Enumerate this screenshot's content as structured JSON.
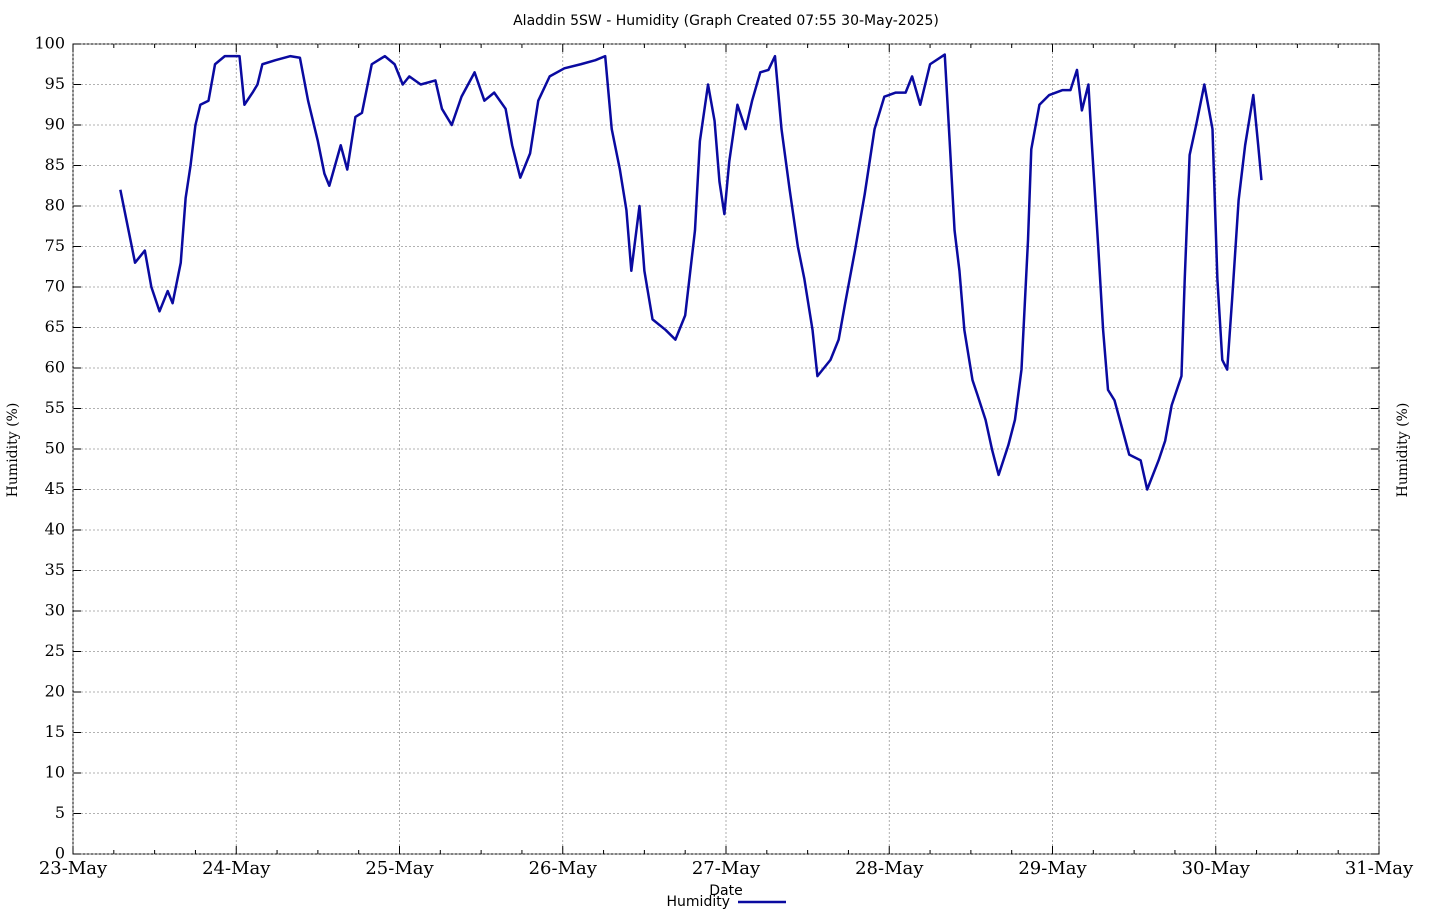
{
  "chart_data": {
    "type": "line",
    "title": "Aladdin 5SW - Humidity (Graph Created 07:55 30-May-2025)",
    "x_label": "Date",
    "y_label": "Humidity (%)",
    "y2_label": "Humidity (%)",
    "xlim": [
      0,
      8
    ],
    "xticks": [
      {
        "value": 0,
        "label": "23-May"
      },
      {
        "value": 1,
        "label": "24-May"
      },
      {
        "value": 2,
        "label": "25-May"
      },
      {
        "value": 3,
        "label": "26-May"
      },
      {
        "value": 4,
        "label": "27-May"
      },
      {
        "value": 5,
        "label": "28-May"
      },
      {
        "value": 6,
        "label": "29-May"
      },
      {
        "value": 7,
        "label": "30-May"
      },
      {
        "value": 8,
        "label": "31-May"
      }
    ],
    "ylim": [
      0,
      100
    ],
    "yticks": [
      0,
      5,
      10,
      15,
      20,
      25,
      30,
      35,
      40,
      45,
      50,
      55,
      60,
      65,
      70,
      75,
      80,
      85,
      90,
      95,
      100
    ],
    "grid": true,
    "legend": "bottom",
    "x": [
      0.29,
      0.32,
      0.35,
      0.38,
      0.44,
      0.48,
      0.53,
      0.58,
      0.61,
      0.66,
      0.69,
      0.72,
      0.75,
      0.78,
      0.83,
      0.87,
      0.93,
      1.02,
      1.05,
      1.1,
      1.13,
      1.16,
      1.24,
      1.33,
      1.39,
      1.44,
      1.5,
      1.54,
      1.57,
      1.64,
      1.68,
      1.73,
      1.77,
      1.83,
      1.91,
      1.97,
      2.02,
      2.06,
      2.13,
      2.22,
      2.26,
      2.32,
      2.38,
      2.46,
      2.52,
      2.58,
      2.65,
      2.69,
      2.74,
      2.8,
      2.85,
      2.92,
      3.01,
      3.11,
      3.2,
      3.26,
      3.3,
      3.35,
      3.39,
      3.42,
      3.47,
      3.5,
      3.55,
      3.63,
      3.69,
      3.75,
      3.81,
      3.84,
      3.89,
      3.93,
      3.96,
      3.99,
      4.02,
      4.07,
      4.12,
      4.16,
      4.21,
      4.26,
      4.3,
      4.34,
      4.39,
      4.44,
      4.48,
      4.53,
      4.56,
      4.64,
      4.69,
      4.73,
      4.79,
      4.85,
      4.91,
      4.97,
      5.04,
      5.1,
      5.14,
      5.19,
      5.25,
      5.34,
      5.37,
      5.4,
      5.43,
      5.46,
      5.51,
      5.54,
      5.59,
      5.63,
      5.67,
      5.73,
      5.77,
      5.81,
      5.85,
      5.87,
      5.92,
      5.98,
      6.06,
      6.11,
      6.15,
      6.18,
      6.22,
      6.24,
      6.28,
      6.31,
      6.34,
      6.38,
      6.43,
      6.47,
      6.54,
      6.58,
      6.65,
      6.69,
      6.73,
      6.79,
      6.81,
      6.84,
      6.88,
      6.93,
      6.98,
      7.01,
      7.04,
      7.07,
      7.1,
      7.14,
      7.18,
      7.23,
      7.26,
      7.28
    ],
    "series": [
      {
        "name": "Humidity",
        "color": "#0a0aa0",
        "values": [
          82,
          79,
          76,
          73,
          74.5,
          70,
          67,
          69.5,
          68,
          73,
          81,
          85,
          90,
          92.5,
          93,
          97.5,
          98.5,
          98.5,
          92.5,
          94,
          95,
          97.5,
          98,
          98.5,
          98.3,
          93,
          88,
          84,
          82.5,
          87.5,
          84.5,
          91,
          91.5,
          97.5,
          98.5,
          97.5,
          95,
          96,
          95,
          95.5,
          92,
          90,
          93.5,
          96.5,
          93,
          94,
          92,
          87.5,
          83.5,
          86.5,
          93,
          96,
          97,
          97.5,
          98,
          98.5,
          89.5,
          84.5,
          79.5,
          72,
          80,
          72,
          66,
          64.7,
          63.5,
          66.5,
          77,
          88,
          95,
          90.5,
          83,
          79,
          85.5,
          92.5,
          89.5,
          93,
          96.5,
          96.8,
          98.5,
          89.5,
          82,
          75,
          71,
          64.7,
          59,
          61,
          63.5,
          68,
          74.5,
          81.5,
          89.5,
          93.5,
          94,
          94,
          96,
          92.5,
          97.5,
          98.7,
          88,
          77,
          72,
          64.7,
          58.5,
          56.7,
          53.6,
          49.9,
          46.8,
          50.5,
          53.6,
          59.8,
          75.8,
          87,
          92.5,
          93.7,
          94.3,
          94.3,
          96.8,
          91.8,
          95,
          88,
          75,
          64.7,
          57.3,
          56,
          52.3,
          49.3,
          48.6,
          45,
          48.6,
          51,
          55.4,
          59,
          71,
          86.3,
          90,
          95,
          89.5,
          71,
          61,
          59.8,
          68.4,
          80.7,
          87.5,
          93.7,
          87.5,
          83.2
        ]
      }
    ]
  }
}
